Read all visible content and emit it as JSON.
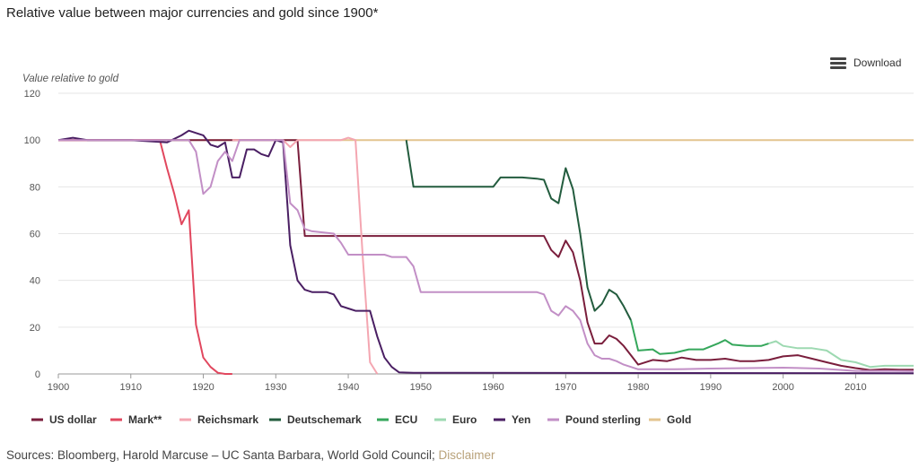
{
  "page": {
    "title": "Relative value between major currencies and gold since 1900*",
    "download_label": "Download",
    "sources_text": "Sources: Bloomberg, Harold Marcuse – UC Santa Barbara, World Gold Council;",
    "disclaimer_label": "Disclaimer"
  },
  "chart_data": {
    "type": "line",
    "ylabel": "Value relative to gold",
    "xlim": [
      1900,
      2018
    ],
    "ylim": [
      0,
      120
    ],
    "xticks": [
      1900,
      1910,
      1920,
      1930,
      1940,
      1950,
      1960,
      1970,
      1980,
      1990,
      2000,
      2010
    ],
    "yticks": [
      0,
      20,
      40,
      60,
      80,
      100,
      120
    ],
    "grid": "horizontal",
    "legend_position": "bottom",
    "series": [
      {
        "name": "Gold",
        "color": "#e3c48f",
        "points": [
          [
            1900,
            100
          ],
          [
            2018,
            100
          ]
        ]
      },
      {
        "name": "US dollar",
        "color": "#7a1e3c",
        "points": [
          [
            1900,
            100
          ],
          [
            1933,
            100
          ],
          [
            1934,
            59
          ],
          [
            1967,
            59
          ],
          [
            1968,
            53
          ],
          [
            1969,
            50
          ],
          [
            1970,
            57
          ],
          [
            1971,
            52
          ],
          [
            1972,
            40
          ],
          [
            1973,
            22
          ],
          [
            1974,
            13
          ],
          [
            1975,
            13
          ],
          [
            1976,
            16.5
          ],
          [
            1977,
            15
          ],
          [
            1978,
            12
          ],
          [
            1979,
            8
          ],
          [
            1980,
            4
          ],
          [
            1982,
            6
          ],
          [
            1984,
            5.5
          ],
          [
            1986,
            7
          ],
          [
            1988,
            6
          ],
          [
            1990,
            6
          ],
          [
            1992,
            6.5
          ],
          [
            1994,
            5.5
          ],
          [
            1996,
            5.5
          ],
          [
            1998,
            6
          ],
          [
            2000,
            7.5
          ],
          [
            2002,
            8
          ],
          [
            2004,
            6.5
          ],
          [
            2006,
            5
          ],
          [
            2008,
            3.5
          ],
          [
            2010,
            2.5
          ],
          [
            2012,
            1.7
          ],
          [
            2014,
            2
          ],
          [
            2016,
            1.8
          ],
          [
            2018,
            1.8
          ]
        ]
      },
      {
        "name": "Mark**",
        "color": "#e1475e",
        "points": [
          [
            1900,
            100
          ],
          [
            1914,
            100
          ],
          [
            1915,
            88
          ],
          [
            1916,
            77
          ],
          [
            1917,
            64
          ],
          [
            1918,
            70
          ],
          [
            1919,
            21
          ],
          [
            1920,
            7
          ],
          [
            1921,
            3
          ],
          [
            1922,
            0.5
          ],
          [
            1923,
            0
          ],
          [
            1924,
            0
          ]
        ]
      },
      {
        "name": "Reichsmark",
        "color": "#f4a6b1",
        "points": [
          [
            1924,
            100
          ],
          [
            1931,
            100
          ],
          [
            1932,
            97
          ],
          [
            1933,
            100
          ],
          [
            1936,
            100
          ],
          [
            1939,
            100
          ],
          [
            1940,
            101
          ],
          [
            1941,
            100
          ],
          [
            1942,
            50
          ],
          [
            1943,
            5
          ],
          [
            1944,
            0
          ]
        ]
      },
      {
        "name": "Deutschemark",
        "color": "#235c3e",
        "points": [
          [
            1948,
            100
          ],
          [
            1949,
            80
          ],
          [
            1960,
            80
          ],
          [
            1961,
            84
          ],
          [
            1964,
            84
          ],
          [
            1966,
            83.5
          ],
          [
            1967,
            83
          ],
          [
            1968,
            75
          ],
          [
            1969,
            73
          ],
          [
            1970,
            88
          ],
          [
            1971,
            79
          ],
          [
            1972,
            60
          ],
          [
            1973,
            37
          ],
          [
            1974,
            27
          ],
          [
            1975,
            30
          ],
          [
            1976,
            36
          ],
          [
            1977,
            34
          ],
          [
            1978,
            29
          ],
          [
            1979,
            23
          ]
        ]
      },
      {
        "name": "ECU",
        "color": "#35a75b",
        "points": [
          [
            1979,
            23
          ],
          [
            1980,
            10
          ],
          [
            1982,
            10.5
          ],
          [
            1983,
            8.5
          ],
          [
            1985,
            9
          ],
          [
            1987,
            10.5
          ],
          [
            1989,
            10.5
          ],
          [
            1991,
            13
          ],
          [
            1992,
            14.5
          ],
          [
            1993,
            12.5
          ],
          [
            1995,
            12
          ],
          [
            1997,
            12
          ],
          [
            1998,
            13
          ]
        ]
      },
      {
        "name": "Euro",
        "color": "#9dd9b1",
        "points": [
          [
            1998,
            13
          ],
          [
            1999,
            14
          ],
          [
            2000,
            12
          ],
          [
            2002,
            11
          ],
          [
            2004,
            11
          ],
          [
            2006,
            10
          ],
          [
            2008,
            6
          ],
          [
            2010,
            5
          ],
          [
            2012,
            3
          ],
          [
            2014,
            3.5
          ],
          [
            2016,
            3.5
          ],
          [
            2018,
            3.5
          ]
        ]
      },
      {
        "name": "Yen",
        "color": "#4a1f63",
        "points": [
          [
            1900,
            100
          ],
          [
            1902,
            101
          ],
          [
            1904,
            100
          ],
          [
            1910,
            100
          ],
          [
            1915,
            99
          ],
          [
            1917,
            102
          ],
          [
            1918,
            104
          ],
          [
            1919,
            103
          ],
          [
            1920,
            102
          ],
          [
            1921,
            98
          ],
          [
            1922,
            97
          ],
          [
            1923,
            99
          ],
          [
            1924,
            84
          ],
          [
            1925,
            84
          ],
          [
            1926,
            96
          ],
          [
            1927,
            96
          ],
          [
            1928,
            94
          ],
          [
            1929,
            93
          ],
          [
            1930,
            100
          ],
          [
            1931,
            99
          ],
          [
            1932,
            55
          ],
          [
            1933,
            40
          ],
          [
            1934,
            36
          ],
          [
            1935,
            35
          ],
          [
            1937,
            35
          ],
          [
            1938,
            34
          ],
          [
            1939,
            29
          ],
          [
            1940,
            28
          ],
          [
            1941,
            27
          ],
          [
            1943,
            27
          ],
          [
            1944,
            16
          ],
          [
            1945,
            7
          ],
          [
            1946,
            3
          ],
          [
            1947,
            0.7
          ],
          [
            1949,
            0.5
          ],
          [
            2018,
            0.3
          ]
        ]
      },
      {
        "name": "Pound sterling",
        "color": "#c28fc6",
        "points": [
          [
            1900,
            100
          ],
          [
            1914,
            100
          ],
          [
            1918,
            100
          ],
          [
            1919,
            95
          ],
          [
            1920,
            77
          ],
          [
            1921,
            80
          ],
          [
            1922,
            91
          ],
          [
            1923,
            95
          ],
          [
            1924,
            91
          ],
          [
            1925,
            100
          ],
          [
            1931,
            100
          ],
          [
            1932,
            73
          ],
          [
            1933,
            70
          ],
          [
            1934,
            62
          ],
          [
            1935,
            61
          ],
          [
            1938,
            60
          ],
          [
            1939,
            56
          ],
          [
            1940,
            51
          ],
          [
            1945,
            51
          ],
          [
            1946,
            50
          ],
          [
            1948,
            50
          ],
          [
            1949,
            46
          ],
          [
            1950,
            35
          ],
          [
            1966,
            35
          ],
          [
            1967,
            34
          ],
          [
            1968,
            27
          ],
          [
            1969,
            25
          ],
          [
            1970,
            29
          ],
          [
            1971,
            27
          ],
          [
            1972,
            23
          ],
          [
            1973,
            13
          ],
          [
            1974,
            8
          ],
          [
            1975,
            6.5
          ],
          [
            1976,
            6.5
          ],
          [
            1977,
            5.5
          ],
          [
            1978,
            4
          ],
          [
            1979,
            3
          ],
          [
            1980,
            2
          ],
          [
            1985,
            2
          ],
          [
            1990,
            2.3
          ],
          [
            2000,
            2.7
          ],
          [
            2005,
            2.3
          ],
          [
            2010,
            1.3
          ],
          [
            2015,
            1.3
          ],
          [
            2018,
            1.2
          ]
        ]
      }
    ],
    "legend": [
      "US dollar",
      "Mark**",
      "Reichsmark",
      "Deutschemark",
      "ECU",
      "Euro",
      "Yen",
      "Pound sterling",
      "Gold"
    ]
  }
}
